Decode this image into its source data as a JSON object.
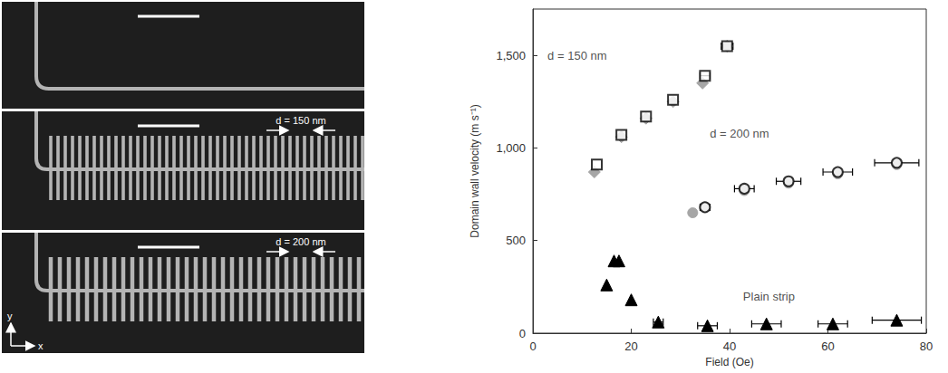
{
  "chart_data": {
    "type": "scatter",
    "x_label": "Field (Oe)",
    "y_label": "Domain wall velocity (m s⁻¹)",
    "xlim": [
      0,
      80
    ],
    "xticks": [
      0,
      20,
      40,
      60,
      80
    ],
    "ylim": [
      0,
      1750
    ],
    "yticks": [
      0,
      500,
      {
        "value": 1000,
        "label": "1,000"
      },
      {
        "value": 1500,
        "label": "1,500"
      }
    ],
    "grid": false,
    "series": [
      {
        "color": "#a6a6a6",
        "marker": "diamond",
        "x": [
          12.5,
          18,
          23,
          28.5,
          34.5,
          39.5
        ],
        "values": [
          870,
          1060,
          1160,
          1250,
          1350,
          1550
        ],
        "x_err": [
          null,
          null,
          null,
          null,
          null,
          null
        ]
      },
      {
        "color": "#000000",
        "marker": "open_square",
        "x": [
          13,
          18,
          23,
          28.5,
          35,
          39.5
        ],
        "values": [
          910,
          1070,
          1170,
          1260,
          1390,
          1550
        ],
        "x_err": [
          null,
          null,
          null,
          null,
          1,
          1.2
        ]
      },
      {
        "color": "#a6a6a6",
        "marker": "circle",
        "x": [
          32.5,
          35,
          43,
          52,
          62,
          74
        ],
        "values": [
          650,
          680,
          770,
          810,
          860,
          910
        ],
        "x_err": [
          null,
          null,
          null,
          null,
          null,
          null
        ]
      },
      {
        "color": "#000000",
        "marker": "open_circle",
        "x": [
          35,
          43,
          52,
          62,
          74
        ],
        "values": [
          680,
          780,
          820,
          870,
          920
        ],
        "x_err": [
          1,
          2,
          2.5,
          3,
          4.5
        ]
      },
      {
        "color": "#000000",
        "marker": "triangle",
        "x": [
          15,
          16.5,
          17.5,
          20,
          25.5,
          35.5,
          47.5,
          61,
          74
        ],
        "values": [
          260,
          390,
          390,
          180,
          60,
          40,
          50,
          50,
          70
        ],
        "x_err": [
          null,
          null,
          null,
          null,
          1,
          2,
          3,
          3,
          5
        ]
      }
    ],
    "annotations": [
      {
        "text": "d = 150 nm",
        "x": 9,
        "y": 1500
      },
      {
        "text": "d = 200 nm",
        "x": 42,
        "y": 1080
      },
      {
        "text": "Plain strip",
        "x": 48,
        "y": 200
      }
    ]
  },
  "micrographs": {
    "panels": [
      {
        "type": "plain"
      },
      {
        "type": "comb",
        "label": "d = 150 nm"
      },
      {
        "type": "comb",
        "label": "d = 200 nm"
      }
    ],
    "axis_labels": {
      "x": "x",
      "y": "y"
    }
  }
}
